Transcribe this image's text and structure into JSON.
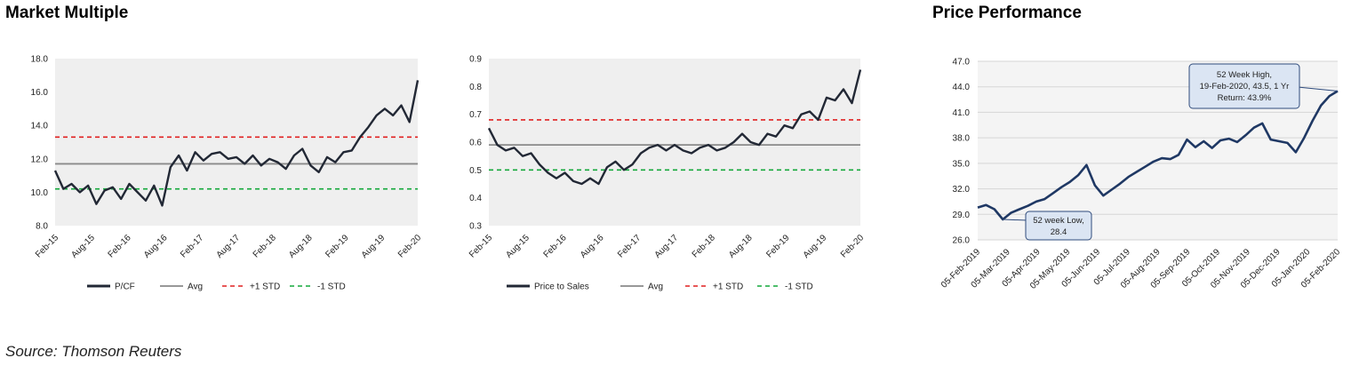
{
  "headings": {
    "market_multiple": "Market Multiple",
    "price_performance": "Price Performance"
  },
  "source": "Source: Thomson Reuters",
  "colors": {
    "series_line": "#222835",
    "price_line": "#1f3864",
    "avg_line": "#8a8a8a",
    "plus_std": "#e02020",
    "minus_std": "#14a83c",
    "plot_bg": "#efefef",
    "callout_bg": "#dbe5f3",
    "callout_border": "#2f4b7c"
  },
  "chart_data": [
    {
      "type": "line",
      "title": "",
      "x_tick_labels": [
        "Feb-15",
        "Aug-15",
        "Feb-16",
        "Aug-16",
        "Feb-17",
        "Aug-17",
        "Feb-18",
        "Aug-18",
        "Feb-19",
        "Aug-19",
        "Feb-20"
      ],
      "y_tick_labels": [
        "8.0",
        "10.0",
        "12.0",
        "14.0",
        "16.0",
        "18.0"
      ],
      "ylim": [
        8.0,
        18.0
      ],
      "grid": false,
      "legend_position": "bottom",
      "series": [
        {
          "name": "P/CF",
          "style": "solid-thick",
          "values": [
            11.3,
            10.2,
            10.5,
            10.0,
            10.4,
            9.3,
            10.1,
            10.3,
            9.6,
            10.5,
            10.0,
            9.5,
            10.4,
            9.2,
            11.5,
            12.2,
            11.3,
            12.4,
            11.9,
            12.3,
            12.4,
            12.0,
            12.1,
            11.7,
            12.2,
            11.6,
            12.0,
            11.8,
            11.4,
            12.2,
            12.6,
            11.6,
            11.2,
            12.1,
            11.8,
            12.4,
            12.5,
            13.3,
            13.9,
            14.6,
            15.0,
            14.6,
            15.2,
            14.2,
            16.7
          ]
        },
        {
          "name": "Avg",
          "style": "solid-thin",
          "values": [
            11.7
          ]
        },
        {
          "name": "+1 STD",
          "style": "dashed",
          "values": [
            13.3
          ]
        },
        {
          "name": "-1 STD",
          "style": "dashed",
          "values": [
            10.2
          ]
        }
      ]
    },
    {
      "type": "line",
      "title": "",
      "x_tick_labels": [
        "Feb-15",
        "Aug-15",
        "Feb-16",
        "Aug-16",
        "Feb-17",
        "Aug-17",
        "Feb-18",
        "Aug-18",
        "Feb-19",
        "Aug-19",
        "Feb-20"
      ],
      "y_tick_labels": [
        "0.3",
        "0.4",
        "0.5",
        "0.6",
        "0.7",
        "0.8",
        "0.9"
      ],
      "ylim": [
        0.3,
        0.9
      ],
      "grid": false,
      "legend_position": "bottom",
      "series": [
        {
          "name": "Price to Sales",
          "style": "solid-thick",
          "values": [
            0.65,
            0.59,
            0.57,
            0.58,
            0.55,
            0.56,
            0.52,
            0.49,
            0.47,
            0.49,
            0.46,
            0.45,
            0.47,
            0.45,
            0.51,
            0.53,
            0.5,
            0.52,
            0.56,
            0.58,
            0.59,
            0.57,
            0.59,
            0.57,
            0.56,
            0.58,
            0.59,
            0.57,
            0.58,
            0.6,
            0.63,
            0.6,
            0.59,
            0.63,
            0.62,
            0.66,
            0.65,
            0.7,
            0.71,
            0.68,
            0.76,
            0.75,
            0.79,
            0.74,
            0.86
          ]
        },
        {
          "name": "Avg",
          "style": "solid-thin",
          "values": [
            0.59
          ]
        },
        {
          "name": "+1 STD",
          "style": "dashed",
          "values": [
            0.68
          ]
        },
        {
          "name": "-1 STD",
          "style": "dashed",
          "values": [
            0.5
          ]
        }
      ]
    },
    {
      "type": "line",
      "title": "",
      "x_tick_labels": [
        "05-Feb-2019",
        "05-Mar-2019",
        "05-Apr-2019",
        "05-May-2019",
        "05-Jun-2019",
        "05-Jul-2019",
        "05-Aug-2019",
        "05-Sep-2019",
        "05-Oct-2019",
        "05-Nov-2019",
        "05-Dec-2019",
        "05-Jan-2020",
        "05-Feb-2020"
      ],
      "y_tick_labels": [
        "26.0",
        "29.0",
        "32.0",
        "35.0",
        "38.0",
        "41.0",
        "44.0",
        "47.0"
      ],
      "ylim": [
        26.0,
        47.0
      ],
      "grid": true,
      "series": [
        {
          "name": "",
          "style": "solid-thick",
          "values": [
            29.8,
            30.1,
            29.6,
            28.4,
            29.2,
            29.6,
            30.0,
            30.5,
            30.8,
            31.5,
            32.2,
            32.8,
            33.6,
            34.8,
            32.4,
            31.2,
            31.9,
            32.6,
            33.4,
            34.0,
            34.6,
            35.2,
            35.6,
            35.5,
            36.0,
            37.8,
            36.9,
            37.6,
            36.8,
            37.7,
            37.9,
            37.5,
            38.3,
            39.2,
            39.7,
            37.8,
            37.6,
            37.4,
            36.3,
            38.0,
            40.0,
            41.8,
            42.9,
            43.5
          ]
        }
      ],
      "annotations": {
        "high_line1": "52 Week High,",
        "high_line2": "19-Feb-2020, 43.5, 1 Yr",
        "high_line3": "Return: 43.9%",
        "low_line1": "52 week Low,",
        "low_line2": "28.4"
      }
    }
  ]
}
